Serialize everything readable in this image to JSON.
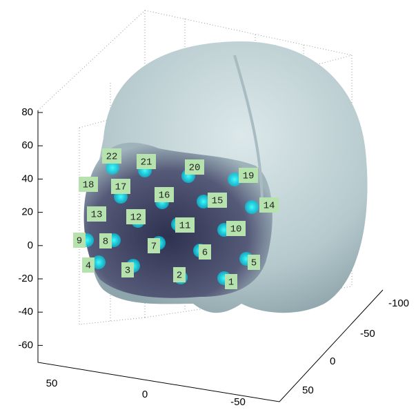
{
  "axes": {
    "z_ticks": [
      80,
      60,
      40,
      20,
      0,
      -20,
      -40,
      -60
    ],
    "y_ticks": [
      50,
      0,
      -50
    ],
    "x_ticks": [
      -100,
      -50,
      0,
      50
    ]
  },
  "electrodes": [
    "1",
    "2",
    "3",
    "4",
    "5",
    "6",
    "7",
    "8",
    "9",
    "10",
    "11",
    "12",
    "13",
    "14",
    "15",
    "16",
    "17",
    "18",
    "19",
    "20",
    "21",
    "22"
  ]
}
